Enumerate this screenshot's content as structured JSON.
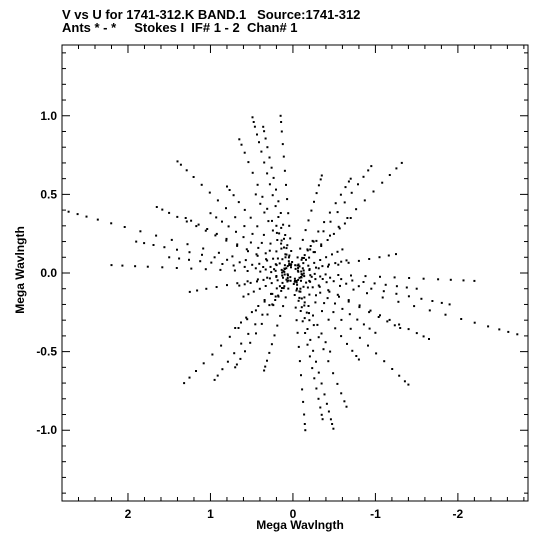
{
  "header": {
    "line1": "V vs U for 1741-312.K BAND.1   Source:1741-312",
    "line2": "Ants * - *     Stokes I  IF# 1 - 2  Chan# 1"
  },
  "chart_data": {
    "type": "scatter",
    "title": "V vs U for 1741-312.K BAND.1   Source:1741-312",
    "subtitle": "Ants * - *     Stokes I  IF# 1 - 2  Chan# 1",
    "xlabel": "Mega Wavlngth",
    "ylabel": "Mega Wavlngth",
    "xlim": [
      2.8,
      -2.85
    ],
    "ylim": [
      -1.45,
      1.45
    ],
    "x_reversed": true,
    "x_ticks": [
      2,
      1,
      0,
      -1,
      -2
    ],
    "x_tick_labels": [
      "2",
      "1",
      "0",
      "-1",
      "-2"
    ],
    "y_ticks": [
      1.0,
      0.5,
      0.0,
      -0.5,
      -1.0
    ],
    "y_tick_labels": [
      "1.0",
      "0.5",
      "0.0",
      "-0.5",
      "-1.0"
    ],
    "grid": false,
    "marker": "dot",
    "marker_color": "#000000",
    "baselines": [
      {
        "direction": [
          0.49,
          0.99
        ],
        "fractions": [
          0.05,
          0.1,
          0.16,
          0.22,
          0.29,
          0.36,
          0.43,
          0.5,
          0.57,
          0.64,
          0.71,
          0.78,
          0.84,
          0.89,
          0.94,
          0.97,
          1.0
        ]
      },
      {
        "direction": [
          0.36,
          0.93
        ],
        "fractions": [
          0.06,
          0.12,
          0.19,
          0.26,
          0.33,
          0.41,
          0.49,
          0.57,
          0.65,
          0.72,
          0.79,
          0.86,
          0.92,
          0.97,
          1.0
        ]
      },
      {
        "direction": [
          1.4,
          0.71
        ],
        "fractions": [
          0.07,
          0.13,
          0.2,
          0.27,
          0.35,
          0.42,
          0.5,
          0.58,
          0.65,
          0.72,
          0.79,
          0.86,
          0.92,
          0.97,
          1.0
        ]
      },
      {
        "direction": [
          1.65,
          0.42
        ],
        "fractions": [
          0.06,
          0.12,
          0.19,
          0.26,
          0.33,
          0.41,
          0.49,
          0.57,
          0.64,
          0.71,
          0.78,
          0.85,
          0.91,
          0.96,
          1.0
        ]
      },
      {
        "direction": [
          2.72,
          0.39
        ],
        "fractions": [
          0.05,
          0.1,
          0.15,
          0.21,
          0.27,
          0.33,
          0.4,
          0.47,
          0.54,
          0.61,
          0.68,
          0.75,
          0.81,
          0.87,
          0.92,
          0.96,
          1.0
        ]
      },
      {
        "direction": [
          1.0,
          0.38
        ],
        "fractions": [
          0.08,
          0.16,
          0.24,
          0.33,
          0.42,
          0.51,
          0.6,
          0.69,
          0.78,
          0.86,
          0.93,
          1.0
        ]
      },
      {
        "direction": [
          1.9,
          0.2
        ],
        "fractions": [
          0.06,
          0.12,
          0.19,
          0.26,
          0.34,
          0.42,
          0.5,
          0.58,
          0.66,
          0.74,
          0.82,
          0.89,
          0.95,
          1.0
        ]
      },
      {
        "direction": [
          2.2,
          0.05
        ],
        "fractions": [
          0.06,
          0.12,
          0.18,
          0.25,
          0.32,
          0.4,
          0.48,
          0.56,
          0.64,
          0.72,
          0.8,
          0.87,
          0.94,
          1.0
        ]
      },
      {
        "direction": [
          0.65,
          0.85
        ],
        "fractions": [
          0.07,
          0.14,
          0.22,
          0.3,
          0.39,
          0.48,
          0.57,
          0.66,
          0.75,
          0.83,
          0.9,
          0.96,
          1.0
        ]
      },
      {
        "direction": [
          0.15,
          1.0
        ],
        "fractions": [
          0.07,
          0.14,
          0.22,
          0.3,
          0.38,
          0.47,
          0.56,
          0.65,
          0.74,
          0.82,
          0.9,
          0.96,
          1.0
        ]
      },
      {
        "direction": [
          -0.35,
          0.62
        ],
        "fractions": [
          0.08,
          0.16,
          0.25,
          0.34,
          0.44,
          0.54,
          0.64,
          0.73,
          0.82,
          0.9,
          0.96,
          1.0
        ]
      },
      {
        "direction": [
          -0.95,
          0.68
        ],
        "fractions": [
          0.07,
          0.14,
          0.22,
          0.3,
          0.39,
          0.48,
          0.57,
          0.66,
          0.75,
          0.83,
          0.9,
          0.96,
          1.0
        ]
      },
      {
        "direction": [
          -1.32,
          0.7
        ],
        "fractions": [
          0.06,
          0.12,
          0.19,
          0.26,
          0.34,
          0.42,
          0.5,
          0.58,
          0.66,
          0.74,
          0.82,
          0.89,
          0.95,
          1.0
        ]
      },
      {
        "direction": [
          -0.7,
          0.6
        ],
        "fractions": [
          0.08,
          0.16,
          0.25,
          0.34,
          0.44,
          0.54,
          0.64,
          0.74,
          0.83,
          0.91,
          0.97,
          1.0
        ]
      },
      {
        "direction": [
          -0.7,
          0.35
        ],
        "fractions": [
          0.09,
          0.18,
          0.28,
          0.38,
          0.49,
          0.6,
          0.71,
          0.81,
          0.9,
          1.0
        ]
      },
      {
        "direction": [
          1.3,
          0.35
        ],
        "fractions": [
          0.08,
          0.16,
          0.25,
          0.34,
          0.43,
          0.52,
          0.62,
          0.71,
          0.8,
          0.88,
          0.95,
          1.0
        ]
      },
      {
        "direction": [
          0.8,
          0.55
        ],
        "fractions": [
          0.08,
          0.16,
          0.25,
          0.34,
          0.44,
          0.54,
          0.64,
          0.73,
          0.82,
          0.9,
          0.96,
          1.0
        ]
      },
      {
        "direction": [
          0.45,
          0.5
        ],
        "fractions": [
          0.1,
          0.2,
          0.31,
          0.42,
          0.54,
          0.66,
          0.77,
          0.88,
          1.0
        ]
      },
      {
        "direction": [
          1.5,
          0.1
        ],
        "fractions": [
          0.07,
          0.14,
          0.22,
          0.3,
          0.39,
          0.48,
          0.57,
          0.66,
          0.75,
          0.84,
          0.92,
          1.0
        ]
      },
      {
        "direction": [
          1.25,
          -0.12
        ],
        "fractions": [
          0.08,
          0.16,
          0.25,
          0.34,
          0.44,
          0.54,
          0.64,
          0.74,
          0.84,
          0.93,
          1.0
        ]
      },
      {
        "direction": [
          0.65,
          -0.08
        ],
        "fractions": [
          0.1,
          0.2,
          0.31,
          0.43,
          0.55,
          0.67,
          0.79,
          0.9,
          1.0
        ]
      },
      {
        "direction": [
          -0.6,
          0.15
        ],
        "fractions": [
          0.1,
          0.2,
          0.31,
          0.43,
          0.55,
          0.67,
          0.79,
          0.9,
          1.0
        ]
      },
      {
        "direction": [
          0.2,
          0.3
        ],
        "fractions": [
          0.12,
          0.25,
          0.39,
          0.54,
          0.69,
          0.84,
          1.0
        ]
      },
      {
        "direction": [
          -0.25,
          0.2
        ],
        "fractions": [
          0.13,
          0.27,
          0.42,
          0.57,
          0.72,
          0.86,
          1.0
        ]
      }
    ]
  }
}
